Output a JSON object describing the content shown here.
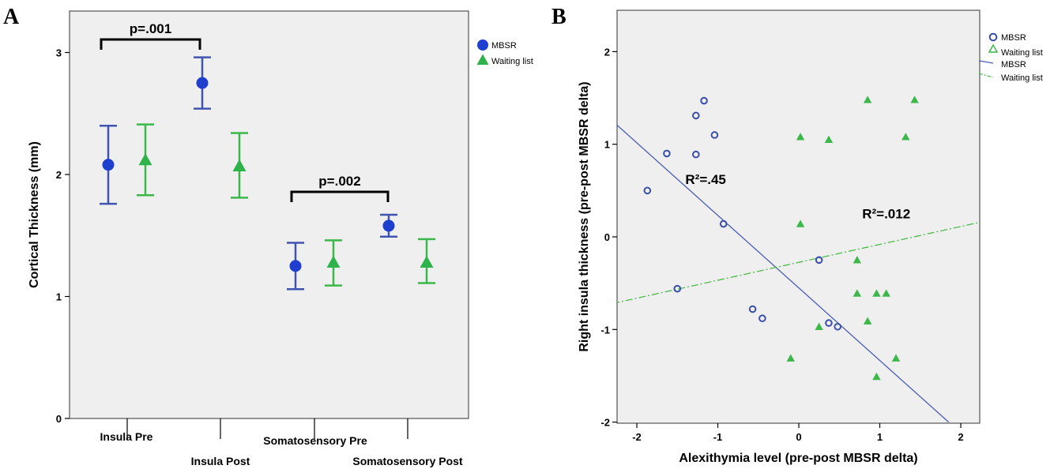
{
  "chart_data": [
    {
      "panel": "A",
      "type": "scatter",
      "ylabel": "Cortical Thickness (mm)",
      "ylim": [
        0,
        3.3
      ],
      "yticks": [
        0,
        1,
        2,
        3
      ],
      "categories": [
        "Insula Pre",
        "Insula Post",
        "Somatosensory Pre",
        "Somatosensory Post"
      ],
      "series": [
        {
          "name": "MBSR",
          "color": "#1f3fcf",
          "bar_color": "#4055b0",
          "marker": "circle",
          "values": [
            2.08,
            2.75,
            1.25,
            1.58
          ],
          "ci_low": [
            1.76,
            2.54,
            1.06,
            1.49
          ],
          "ci_high": [
            2.4,
            2.96,
            1.44,
            1.67
          ]
        },
        {
          "name": "Waiting list",
          "color": "#2db34a",
          "bar_color": "#3cb84a",
          "marker": "triangle",
          "values": [
            2.12,
            2.07,
            1.28,
            1.28
          ],
          "ci_low": [
            1.83,
            1.81,
            1.09,
            1.11
          ],
          "ci_high": [
            2.41,
            2.34,
            1.46,
            1.47
          ]
        }
      ],
      "annotations": [
        {
          "text": "p=.001",
          "from_category": 0,
          "to_category": 1
        },
        {
          "text": "p=.002",
          "from_category": 2,
          "to_category": 3
        }
      ],
      "legend": "top-right",
      "grid": false
    },
    {
      "panel": "B",
      "type": "scatter",
      "xlabel": "Alexithymia level (pre-post MBSR delta)",
      "ylabel": "Right insula thickness (pre-post MBSR delta)",
      "xlim": [
        -2.3,
        2.3
      ],
      "ylim": [
        -2,
        2.5
      ],
      "xticks": [
        -2,
        -1,
        0,
        1,
        2
      ],
      "yticks": [
        -2,
        -1,
        0,
        1,
        2
      ],
      "series": [
        {
          "name": "MBSR",
          "color": "#3a4fa8",
          "marker": "open-circle",
          "points": [
            {
              "x": -1.87,
              "y": 0.5
            },
            {
              "x": -1.63,
              "y": 0.9
            },
            {
              "x": -1.27,
              "y": 0.89
            },
            {
              "x": -1.27,
              "y": 1.31
            },
            {
              "x": -1.17,
              "y": 1.47
            },
            {
              "x": -1.04,
              "y": 1.1
            },
            {
              "x": -0.93,
              "y": 0.14
            },
            {
              "x": -1.5,
              "y": -0.56
            },
            {
              "x": -0.57,
              "y": -0.78
            },
            {
              "x": -0.45,
              "y": -0.88
            },
            {
              "x": 0.25,
              "y": -0.25
            },
            {
              "x": 0.37,
              "y": -0.93
            },
            {
              "x": 0.48,
              "y": -0.97
            }
          ],
          "fit": {
            "x": [
              -2.3,
              1.85
            ],
            "y": [
              1.25,
              -2.0
            ]
          }
        },
        {
          "name": "Waiting list",
          "color": "#3cb84a",
          "marker": "triangle",
          "points": [
            {
              "x": 0.02,
              "y": 1.08
            },
            {
              "x": 0.37,
              "y": 1.05
            },
            {
              "x": 0.85,
              "y": 1.48
            },
            {
              "x": 1.32,
              "y": 1.08
            },
            {
              "x": 1.43,
              "y": 1.48
            },
            {
              "x": 0.02,
              "y": 0.14
            },
            {
              "x": 0.72,
              "y": -0.25
            },
            {
              "x": 0.72,
              "y": -0.61
            },
            {
              "x": 0.96,
              "y": -0.61
            },
            {
              "x": 1.08,
              "y": -0.61
            },
            {
              "x": 0.25,
              "y": -0.97
            },
            {
              "x": 0.85,
              "y": -0.91
            },
            {
              "x": -0.1,
              "y": -1.31
            },
            {
              "x": 0.96,
              "y": -1.51
            },
            {
              "x": 1.2,
              "y": -1.31
            }
          ],
          "fit": {
            "x": [
              -2.3,
              2.3
            ],
            "y": [
              -0.72,
              0.17
            ]
          }
        }
      ],
      "annotations": [
        {
          "text": "R²=.45",
          "x": -1.15,
          "y": 0.57
        },
        {
          "text": "R²=.012",
          "x": 1.08,
          "y": 0.2
        }
      ],
      "legend_line_labels": [
        "MBSR",
        "Waiting list"
      ],
      "legend": "top-right",
      "grid": false
    }
  ]
}
